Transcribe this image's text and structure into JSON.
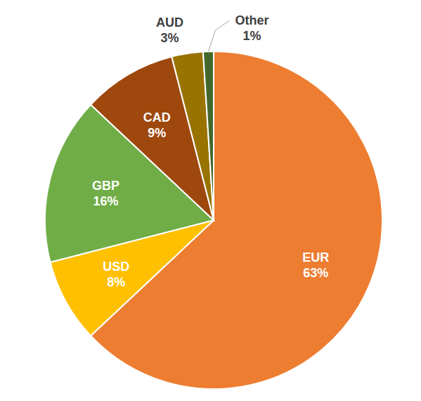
{
  "chart_data": {
    "type": "pie",
    "categories": [
      "EUR",
      "USD",
      "GBP",
      "CAD",
      "AUD",
      "Other"
    ],
    "values": [
      63,
      8,
      16,
      9,
      3,
      1
    ],
    "value_labels": [
      "63%",
      "8%",
      "16%",
      "9%",
      "3%",
      "1%"
    ],
    "colors": [
      "#ed7d31",
      "#ffc000",
      "#70ad47",
      "#9e480e",
      "#997300",
      "#43682b"
    ],
    "data_labels": true
  }
}
